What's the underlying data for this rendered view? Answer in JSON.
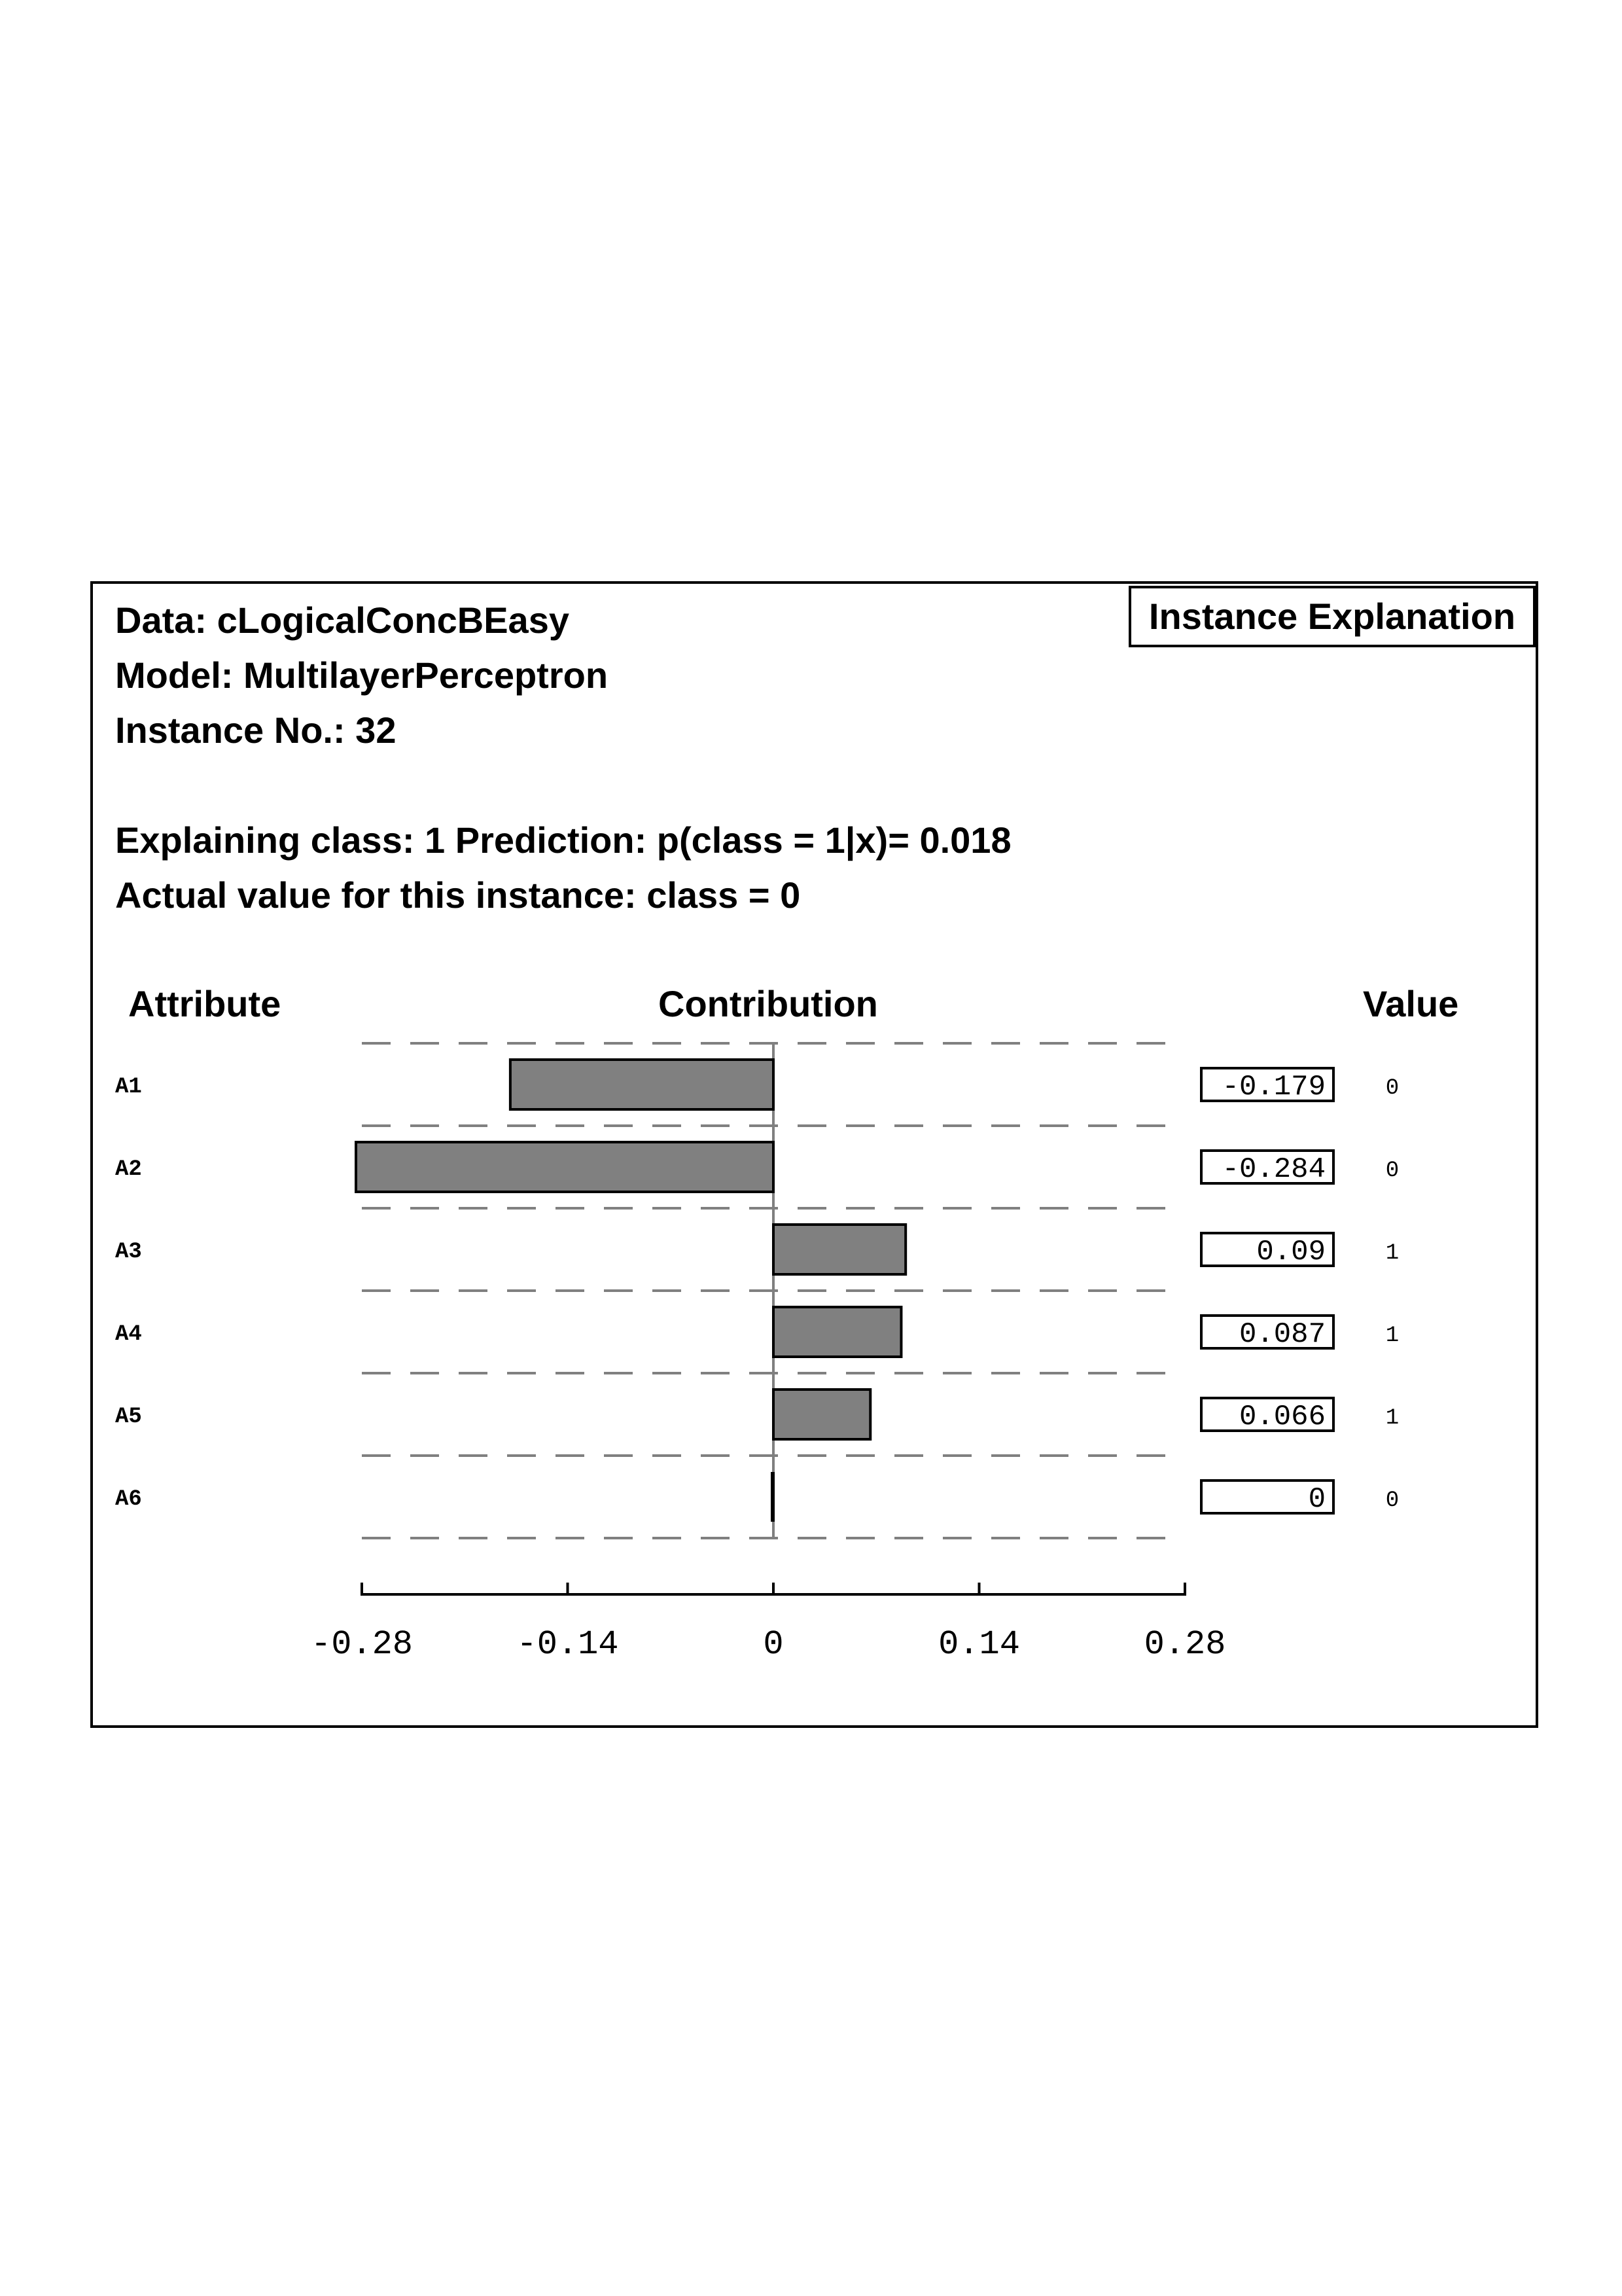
{
  "header": {
    "data_line": "Data: cLogicalConcBEasy",
    "model_line": "Model: MultilayerPerceptron",
    "instance_line": "Instance No.: 32",
    "explaining_line": "Explaining class: 1 Prediction: p(class = 1|x)= 0.018",
    "actual_line": "Actual value for this instance: class = 0",
    "badge": "Instance Explanation"
  },
  "columns": {
    "attribute": "Attribute",
    "contribution": "Contribution",
    "value": "Value"
  },
  "chart_data": {
    "type": "bar",
    "orientation": "horizontal",
    "categories": [
      "A1",
      "A2",
      "A3",
      "A4",
      "A5",
      "A6"
    ],
    "values": [
      -0.179,
      -0.284,
      0.09,
      0.087,
      0.066,
      0
    ],
    "value_labels": [
      "-0.179",
      "-0.284",
      "0.09",
      "0.087",
      "0.066",
      "0"
    ],
    "attribute_values": [
      "0",
      "0",
      "1",
      "1",
      "1",
      "0"
    ],
    "xlim": [
      -0.28,
      0.28
    ],
    "xticks": [
      -0.28,
      -0.14,
      0,
      0.14,
      0.28
    ],
    "xtick_labels": [
      "-0.28",
      "-0.14",
      "0",
      "0.14",
      "0.28"
    ],
    "grid": "dashed horizontal separators",
    "bar_color": "#808080",
    "bar_edge_color": "#000000"
  }
}
